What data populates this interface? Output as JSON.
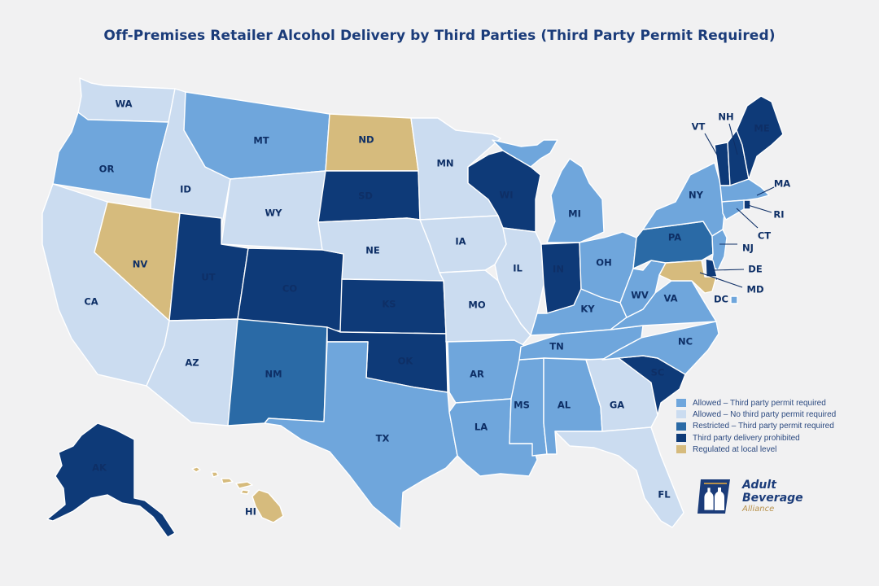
{
  "title": "Off-Premises Retailer Alcohol Delivery by Third Parties (Third Party Permit Required)",
  "categories": {
    "allowed_permit": {
      "label": "Allowed – Third party permit required",
      "color": "#6fa6dc"
    },
    "allowed_no_permit": {
      "label": "Allowed – No third party permit required",
      "color": "#cbdcf0"
    },
    "restricted_permit": {
      "label": "Restricted – Third party permit required",
      "color": "#2a6aa6"
    },
    "prohibited": {
      "label": "Third party delivery prohibited",
      "color": "#0e3a78"
    },
    "local": {
      "label": "Regulated at local level",
      "color": "#d6bb7d"
    }
  },
  "legend_order": [
    "allowed_permit",
    "allowed_no_permit",
    "restricted_permit",
    "prohibited",
    "local"
  ],
  "states": [
    {
      "code": "WA",
      "category": "allowed_no_permit"
    },
    {
      "code": "OR",
      "category": "allowed_permit"
    },
    {
      "code": "CA",
      "category": "allowed_no_permit"
    },
    {
      "code": "ID",
      "category": "allowed_no_permit"
    },
    {
      "code": "NV",
      "category": "local"
    },
    {
      "code": "MT",
      "category": "allowed_permit"
    },
    {
      "code": "WY",
      "category": "allowed_no_permit"
    },
    {
      "code": "UT",
      "category": "prohibited"
    },
    {
      "code": "AZ",
      "category": "allowed_no_permit"
    },
    {
      "code": "CO",
      "category": "prohibited"
    },
    {
      "code": "NM",
      "category": "restricted_permit"
    },
    {
      "code": "ND",
      "category": "local"
    },
    {
      "code": "SD",
      "category": "prohibited"
    },
    {
      "code": "NE",
      "category": "allowed_no_permit"
    },
    {
      "code": "KS",
      "category": "prohibited"
    },
    {
      "code": "OK",
      "category": "prohibited"
    },
    {
      "code": "TX",
      "category": "allowed_permit"
    },
    {
      "code": "MN",
      "category": "allowed_no_permit"
    },
    {
      "code": "IA",
      "category": "allowed_no_permit"
    },
    {
      "code": "MO",
      "category": "allowed_no_permit"
    },
    {
      "code": "AR",
      "category": "allowed_permit"
    },
    {
      "code": "LA",
      "category": "allowed_permit"
    },
    {
      "code": "WI",
      "category": "prohibited"
    },
    {
      "code": "IL",
      "category": "allowed_no_permit"
    },
    {
      "code": "MS",
      "category": "allowed_permit"
    },
    {
      "code": "MI",
      "category": "allowed_permit"
    },
    {
      "code": "IN",
      "category": "prohibited"
    },
    {
      "code": "KY",
      "category": "allowed_permit"
    },
    {
      "code": "TN",
      "category": "allowed_permit"
    },
    {
      "code": "AL",
      "category": "allowed_permit"
    },
    {
      "code": "OH",
      "category": "allowed_permit"
    },
    {
      "code": "GA",
      "category": "allowed_no_permit"
    },
    {
      "code": "FL",
      "category": "allowed_no_permit"
    },
    {
      "code": "SC",
      "category": "prohibited"
    },
    {
      "code": "NC",
      "category": "allowed_permit"
    },
    {
      "code": "VA",
      "category": "allowed_permit"
    },
    {
      "code": "WV",
      "category": "allowed_permit"
    },
    {
      "code": "PA",
      "category": "restricted_permit"
    },
    {
      "code": "NY",
      "category": "allowed_permit"
    },
    {
      "code": "VT",
      "category": "prohibited"
    },
    {
      "code": "NH",
      "category": "prohibited"
    },
    {
      "code": "ME",
      "category": "prohibited"
    },
    {
      "code": "MA",
      "category": "allowed_permit"
    },
    {
      "code": "RI",
      "category": "prohibited"
    },
    {
      "code": "CT",
      "category": "allowed_permit"
    },
    {
      "code": "NJ",
      "category": "allowed_permit"
    },
    {
      "code": "DE",
      "category": "prohibited"
    },
    {
      "code": "MD",
      "category": "local"
    },
    {
      "code": "DC",
      "category": "allowed_permit"
    },
    {
      "code": "AK",
      "category": "prohibited"
    },
    {
      "code": "HI",
      "category": "local"
    }
  ],
  "logo": {
    "line1": "Adult",
    "line2": "Beverage",
    "line3": "Alliance"
  }
}
